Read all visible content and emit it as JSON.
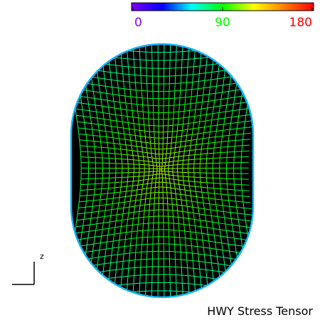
{
  "colorbar": {
    "range": [
      0,
      180
    ],
    "ticks": [
      0,
      90,
      180
    ]
  },
  "axis_label": "z",
  "title": "HWY Stress Tensor"
}
